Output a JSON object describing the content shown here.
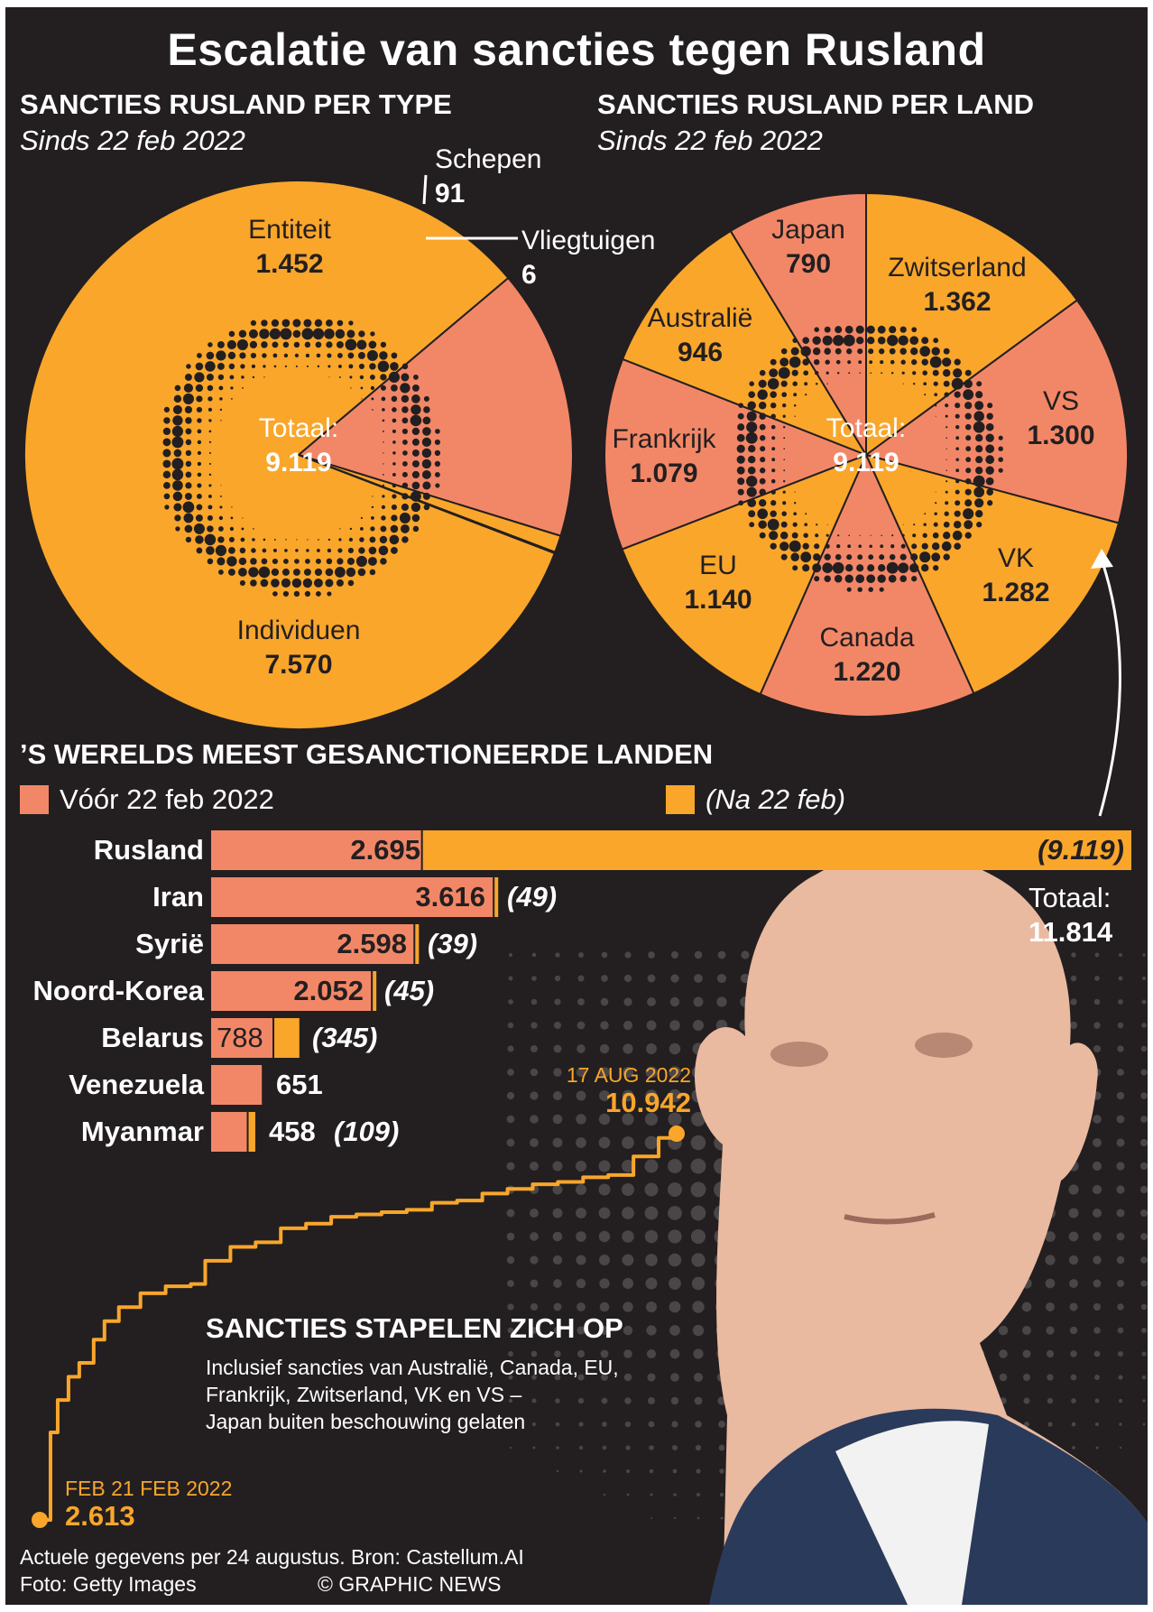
{
  "title": "Escalatie van sancties tegen Rusland",
  "colors": {
    "background": "#231f20",
    "salmon": "#f28767",
    "orange": "#f9a62b",
    "white": "#ffffff"
  },
  "pie_type": {
    "heading": "SANCTIES RUSLAND PER TYPE",
    "subheading": "Sinds 22 feb 2022",
    "center_label": "Totaal:",
    "center_value": "9.119",
    "slices": [
      {
        "label": "Individuen",
        "value_text": "7.570"
      },
      {
        "label": "Entiteit",
        "value_text": "1.452"
      },
      {
        "label": "Schepen",
        "value_text": "91"
      },
      {
        "label": "Vliegtuigen",
        "value_text": "6"
      }
    ]
  },
  "pie_country": {
    "heading": "SANCTIES RUSLAND PER LAND",
    "subheading": "Sinds 22 feb 2022",
    "center_label": "Totaal:",
    "center_value": "9.119",
    "slices": [
      {
        "label": "Zwitserland",
        "value_text": "1.362"
      },
      {
        "label": "VS",
        "value_text": "1.300"
      },
      {
        "label": "VK",
        "value_text": "1.282"
      },
      {
        "label": "Canada",
        "value_text": "1.220"
      },
      {
        "label": "EU",
        "value_text": "1.140"
      },
      {
        "label": "Frankrijk",
        "value_text": "1.079"
      },
      {
        "label": "Australië",
        "value_text": "946"
      },
      {
        "label": "Japan",
        "value_text": "790"
      }
    ]
  },
  "bars": {
    "heading": "’S WERELDS MEEST GESANCTIONEERDE LANDEN",
    "legend_before": "Vóór 22 feb 2022",
    "legend_after": "(Na 22 feb)",
    "total_label": "Totaal:",
    "total_value": "11.814",
    "rows": [
      {
        "country": "Rusland",
        "before_text": "2.695",
        "after_text": "(9.119)"
      },
      {
        "country": "Iran",
        "before_text": "3.616",
        "after_text": "(49)"
      },
      {
        "country": "Syrië",
        "before_text": "2.598",
        "after_text": "(39)"
      },
      {
        "country": "Noord-Korea",
        "before_text": "2.052",
        "after_text": "(45)"
      },
      {
        "country": "Belarus",
        "before_text": "788",
        "after_text": "(345)"
      },
      {
        "country": "Venezuela",
        "before_text": "651",
        "after_text": ""
      },
      {
        "country": "Myanmar",
        "before_text": "458",
        "after_text": "(109)"
      }
    ]
  },
  "line": {
    "heading": "SANCTIES STAPELEN ZICH OP",
    "note_1": "Inclusief sancties van Australië, Canada, EU,",
    "note_2": "Frankrijk, Zwitserland, VK en VS –",
    "note_3": "Japan buiten beschouwing gelaten",
    "start_date": "FEB 21 FEB 2022",
    "start_value": "2.613",
    "end_date": "17 AUG 2022",
    "end_value": "10.942"
  },
  "chart_data": [
    {
      "type": "pie",
      "title": "SANCTIES RUSLAND PER TYPE",
      "subtitle": "Sinds 22 feb 2022",
      "categories": [
        "Individuen",
        "Entiteit",
        "Schepen",
        "Vliegtuigen"
      ],
      "values": [
        7570,
        1452,
        91,
        6
      ],
      "colors": [
        "#f9a62b",
        "#f28767",
        "#f9a62b",
        "#f9a62b"
      ]
    },
    {
      "type": "pie",
      "title": "SANCTIES RUSLAND PER LAND",
      "subtitle": "Sinds 22 feb 2022",
      "categories": [
        "Zwitserland",
        "VS",
        "VK",
        "Canada",
        "EU",
        "Frankrijk",
        "Australië",
        "Japan"
      ],
      "values": [
        1362,
        1300,
        1282,
        1220,
        1140,
        1079,
        946,
        790
      ],
      "colors": [
        "#f9a62b",
        "#f28767",
        "#f9a62b",
        "#f28767",
        "#f9a62b",
        "#f28767",
        "#f9a62b",
        "#f28767"
      ]
    },
    {
      "type": "bar",
      "title": "’S WERELDS MEEST GESANCTIONEERDE LANDEN",
      "orientation": "horizontal",
      "stacked": true,
      "categories": [
        "Rusland",
        "Iran",
        "Syrië",
        "Noord-Korea",
        "Belarus",
        "Venezuela",
        "Myanmar"
      ],
      "series": [
        {
          "name": "Vóór 22 feb 2022",
          "color": "#f28767",
          "values": [
            2695,
            3616,
            2598,
            2052,
            788,
            651,
            458
          ]
        },
        {
          "name": "(Na 22 feb)",
          "color": "#f9a62b",
          "values": [
            9119,
            49,
            39,
            45,
            345,
            0,
            109
          ]
        }
      ],
      "legend": "top"
    },
    {
      "type": "line",
      "title": "SANCTIES STAPELEN ZICH OP",
      "x": [
        "2022-02-21",
        "2022-02-24",
        "2022-02-26",
        "2022-03-01",
        "2022-03-04",
        "2022-03-08",
        "2022-03-11",
        "2022-03-15",
        "2022-03-21",
        "2022-03-28",
        "2022-04-04",
        "2022-04-08",
        "2022-04-15",
        "2022-04-22",
        "2022-04-29",
        "2022-05-06",
        "2022-05-13",
        "2022-05-20",
        "2022-05-27",
        "2022-06-03",
        "2022-06-10",
        "2022-06-17",
        "2022-06-24",
        "2022-07-01",
        "2022-07-08",
        "2022-07-15",
        "2022-07-22",
        "2022-07-29",
        "2022-08-05",
        "2022-08-12",
        "2022-08-17"
      ],
      "series": [
        {
          "name": "",
          "color": "#f9a62b",
          "values": [
            2613,
            4500,
            5200,
            5700,
            6000,
            6500,
            6900,
            7200,
            7500,
            7650,
            7700,
            8200,
            8500,
            8600,
            8900,
            9000,
            9150,
            9200,
            9250,
            9300,
            9450,
            9500,
            9650,
            9750,
            9850,
            9900,
            10000,
            10050,
            10450,
            10850,
            10942
          ]
        }
      ],
      "color": "#f9a62b"
    }
  ]
}
